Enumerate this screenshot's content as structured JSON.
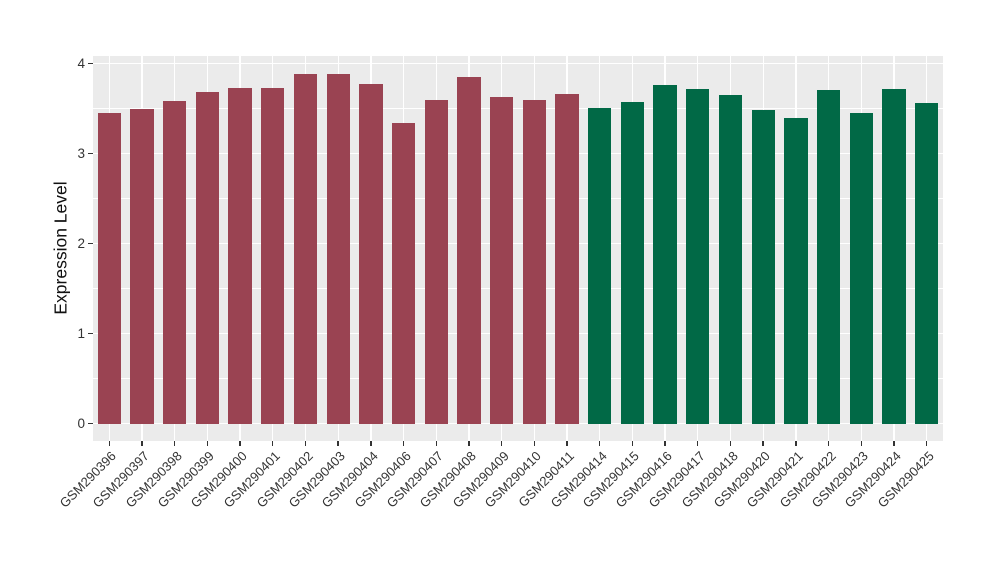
{
  "chart_data": {
    "type": "bar",
    "title": "",
    "xlabel": "",
    "ylabel": "Expression Level",
    "categories": [
      "GSM290396",
      "GSM290397",
      "GSM290398",
      "GSM290399",
      "GSM290400",
      "GSM290401",
      "GSM290402",
      "GSM290403",
      "GSM290404",
      "GSM290406",
      "GSM290407",
      "GSM290408",
      "GSM290409",
      "GSM290410",
      "GSM290411",
      "GSM290414",
      "GSM290415",
      "GSM290416",
      "GSM290417",
      "GSM290418",
      "GSM290420",
      "GSM290421",
      "GSM290422",
      "GSM290423",
      "GSM290424",
      "GSM290425"
    ],
    "values": [
      3.45,
      3.5,
      3.58,
      3.68,
      3.73,
      3.73,
      3.88,
      3.88,
      3.77,
      3.34,
      3.59,
      3.85,
      3.63,
      3.6,
      3.66,
      3.51,
      3.57,
      3.76,
      3.72,
      3.65,
      3.48,
      3.4,
      3.71,
      3.45,
      3.72,
      3.56
    ],
    "group_split_index": 15,
    "group_colors": [
      "#9A4352",
      "#016946"
    ],
    "ylim": [
      0,
      4
    ],
    "yticks": [
      0,
      1,
      2,
      3,
      4
    ],
    "minor_yticks": [
      0.5,
      1.5,
      2.5,
      3.5
    ],
    "grid": true,
    "legend": "none",
    "panel_background": "#EBEBEB",
    "gridline_color": "#FFFFFF",
    "tick_label_color": "#333333",
    "axis_title_color": "#111111"
  }
}
